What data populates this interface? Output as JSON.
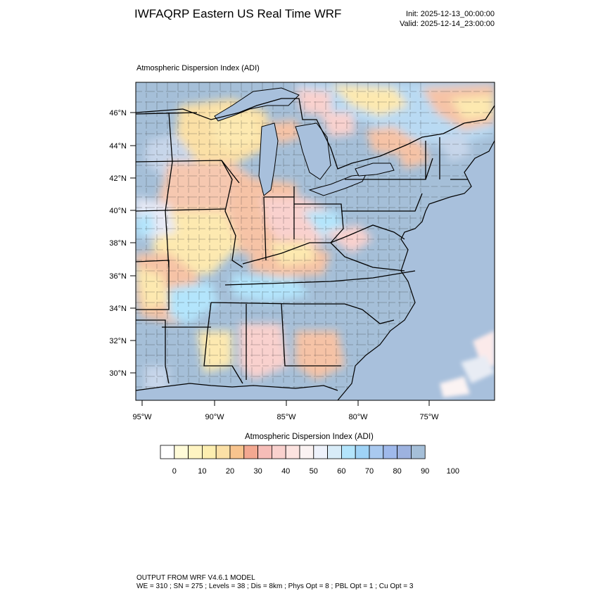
{
  "header": {
    "title": "IWFAQRP Eastern US Real Time WRF",
    "init": "Init: 2025-12-13_00:00:00",
    "valid": "Valid: 2025-12-14_23:00:00"
  },
  "plot": {
    "subtitle": "Atmospheric Dispersion Index   (ADI)",
    "lat_labels": [
      "46°N",
      "44°N",
      "42°N",
      "40°N",
      "38°N",
      "36°N",
      "34°N",
      "32°N",
      "30°N"
    ],
    "lon_labels": [
      "95°W",
      "90°W",
      "85°W",
      "80°W",
      "75°W"
    ]
  },
  "colorbar": {
    "title": "Atmospheric Dispersion Index  (ADI)",
    "tick_labels": [
      "0",
      "10",
      "20",
      "30",
      "40",
      "50",
      "60",
      "70",
      "80",
      "90",
      "100"
    ],
    "colors": [
      "#ffffff",
      "#fffbd8",
      "#fff4c2",
      "#fdeeb0",
      "#fbe0a6",
      "#f8c48e",
      "#f3a891",
      "#f6bdb8",
      "#f9d1ce",
      "#fce3e0",
      "#fbf3f3",
      "#eef2fb",
      "#d8ecf8",
      "#b3e5fc",
      "#9fd3f6",
      "#a9c9ef",
      "#9fb9eb",
      "#9db2df",
      "#a5bfd8"
    ]
  },
  "footer": {
    "line1": "OUTPUT FROM WRF V4.6.1 MODEL",
    "line2": "WE = 310 ; SN = 275 ; Levels = 38 ; Dis = 8km ; Phys Opt = 8 ; PBL Opt = 1 ; Cu Opt = 3"
  },
  "map_colors": {
    "ocean": "#a8c0dc",
    "high_adi": "#a5bfd8",
    "mid_adi": "#f9d1ce",
    "low_adi": "#fde9b0",
    "warm": "#f6c3a6",
    "light_blue": "#b3e5fc"
  }
}
